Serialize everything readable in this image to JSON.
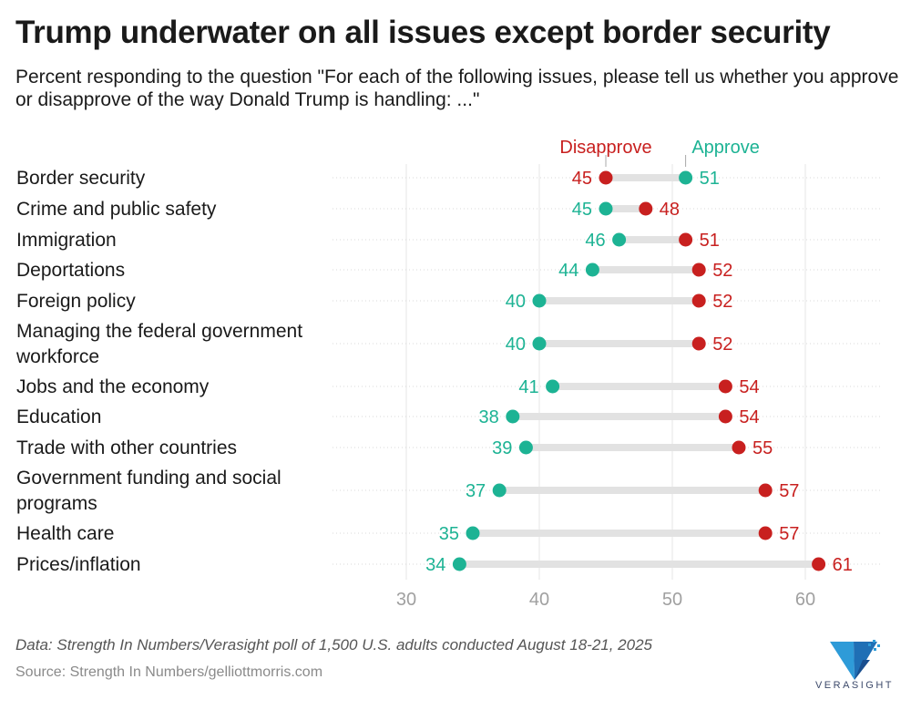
{
  "header": {
    "title": "Trump underwater on all issues except border security",
    "subtitle": "Percent responding to the question \"For each of the following issues, please tell us whether you approve or disapprove of the way Donald Trump is handling: ...\""
  },
  "colors": {
    "approve": "#1db394",
    "disapprove": "#c8201f",
    "connector": "#e2e2e2"
  },
  "chart_data": {
    "type": "dumbbell",
    "legend": {
      "disapprove": "Disapprove",
      "approve": "Approve"
    },
    "x_ticks": [
      30,
      40,
      50,
      60
    ],
    "xlim": [
      26,
      65
    ],
    "rows": [
      {
        "label": [
          "Border security"
        ],
        "disapprove": 45,
        "approve": 51
      },
      {
        "label": [
          "Crime and public safety"
        ],
        "disapprove": 48,
        "approve": 45
      },
      {
        "label": [
          "Immigration"
        ],
        "disapprove": 51,
        "approve": 46
      },
      {
        "label": [
          "Deportations"
        ],
        "disapprove": 52,
        "approve": 44
      },
      {
        "label": [
          "Foreign policy"
        ],
        "disapprove": 52,
        "approve": 40
      },
      {
        "label": [
          "Managing the federal government",
          "workforce"
        ],
        "disapprove": 52,
        "approve": 40
      },
      {
        "label": [
          "Jobs and the economy"
        ],
        "disapprove": 54,
        "approve": 41
      },
      {
        "label": [
          "Education"
        ],
        "disapprove": 54,
        "approve": 38
      },
      {
        "label": [
          "Trade with other countries"
        ],
        "disapprove": 55,
        "approve": 39
      },
      {
        "label": [
          "Government funding and social",
          "programs"
        ],
        "disapprove": 57,
        "approve": 37
      },
      {
        "label": [
          "Health care"
        ],
        "disapprove": 57,
        "approve": 35
      },
      {
        "label": [
          "Prices/inflation"
        ],
        "disapprove": 61,
        "approve": 34
      }
    ]
  },
  "footer": {
    "note": "Data: Strength In Numbers/Verasight poll of 1,500 U.S. adults conducted August 18-21, 2025",
    "source": "Source: Strength In Numbers/gelliottmorris.com",
    "logo_text": "VERASIGHT"
  }
}
